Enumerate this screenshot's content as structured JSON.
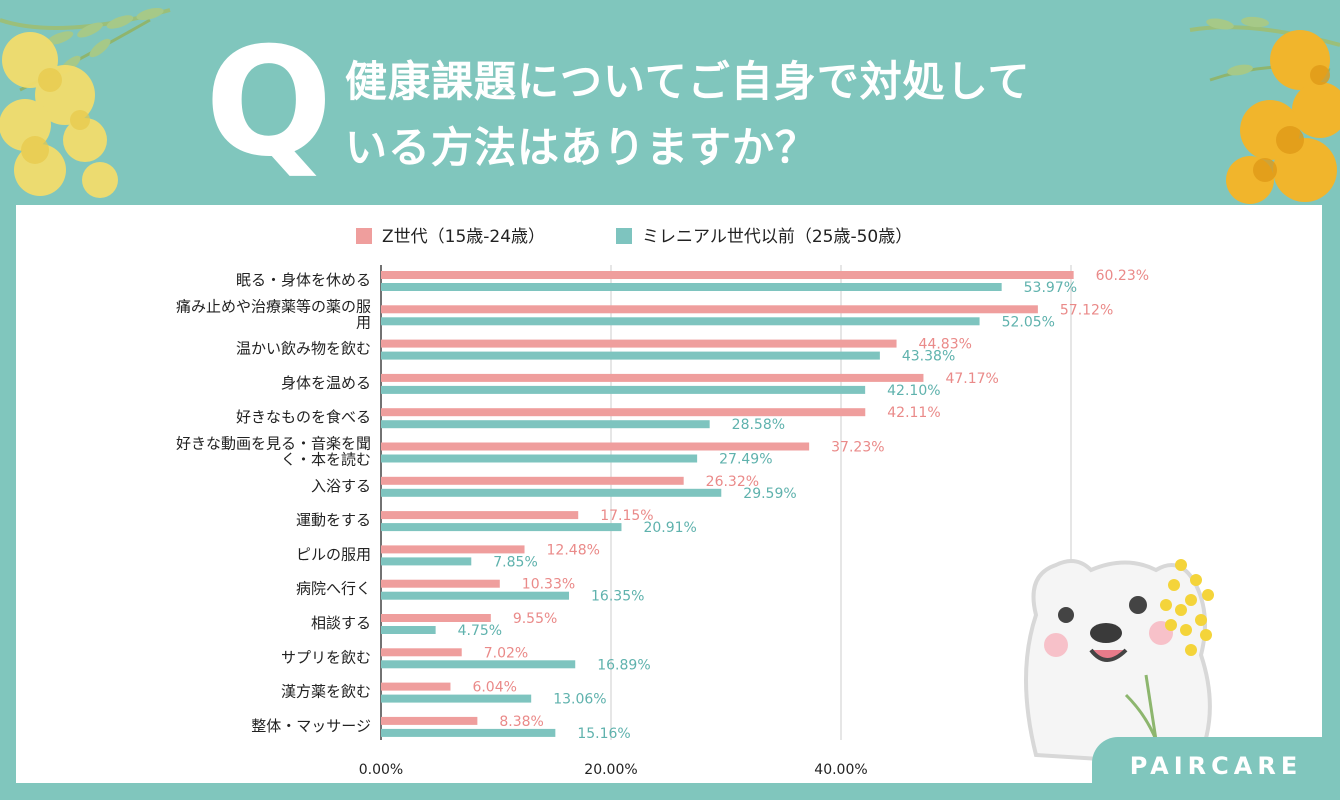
{
  "question": {
    "mark": "Q",
    "line1": "健康課題についてご自身で対処して",
    "line2": "いる方法はありますか？"
  },
  "brand": "PAIRCARE",
  "colors": {
    "frame": "#80c6bd",
    "series_z": "#ef9e9d",
    "series_m": "#7ec4bf",
    "label_z": "#ea8a89",
    "label_m": "#5fb2ad",
    "grid": "#cccccc",
    "text": "#222222"
  },
  "chart_data": {
    "type": "bar",
    "orientation": "horizontal",
    "categories": [
      "眠る・身体を休める",
      "痛み止めや治療薬等の薬の服用",
      "温かい飲み物を飲む",
      "身体を温める",
      "好きなものを食べる",
      "好きな動画を見る・音楽を聞く・本を読む",
      "入浴する",
      "運動をする",
      "ピルの服用",
      "病院へ行く",
      "相談する",
      "サプリを飲む",
      "漢方薬を飲む",
      "整体・マッサージ"
    ],
    "category_lines": [
      [
        "眠る・身体を休める"
      ],
      [
        "痛み止めや治療薬等の薬の服",
        "用"
      ],
      [
        "温かい飲み物を飲む"
      ],
      [
        "身体を温める"
      ],
      [
        "好きなものを食べる"
      ],
      [
        "好きな動画を見る・音楽を聞",
        "く・本を読む"
      ],
      [
        "入浴する"
      ],
      [
        "運動をする"
      ],
      [
        "ピルの服用"
      ],
      [
        "病院へ行く"
      ],
      [
        "相談する"
      ],
      [
        "サプリを飲む"
      ],
      [
        "漢方薬を飲む"
      ],
      [
        "整体・マッサージ"
      ]
    ],
    "series": [
      {
        "name": "Z世代（15歳-24歳）",
        "values": [
          60.23,
          57.12,
          44.83,
          47.17,
          42.11,
          37.23,
          26.32,
          17.15,
          12.48,
          10.33,
          9.55,
          7.02,
          6.04,
          8.38
        ],
        "labels": [
          "60.23%",
          "57.12%",
          "44.83%",
          "47.17%",
          "42.11%",
          "37.23%",
          "26.32%",
          "17.15%",
          "12.48%",
          "10.33%",
          "9.55%",
          "7.02%",
          "6.04%",
          "8.38%"
        ]
      },
      {
        "name": "ミレニアル世代以前（25歳-50歳）",
        "values": [
          53.97,
          52.05,
          43.38,
          42.1,
          28.58,
          27.49,
          29.59,
          20.91,
          7.85,
          16.35,
          4.75,
          16.89,
          13.06,
          15.16
        ],
        "labels": [
          "53.97%",
          "52.05%",
          "43.38%",
          "42.10%",
          "28.58%",
          "27.49%",
          "29.59%",
          "20.91%",
          "7.85%",
          "16.35%",
          "4.75%",
          "16.89%",
          "13.06%",
          "15.16%"
        ]
      }
    ],
    "xlim": [
      0,
      60
    ],
    "xticks": [
      0,
      20,
      40
    ],
    "xtick_labels": [
      "0.00%",
      "20.00%",
      "40.00%"
    ],
    "legend": "top-center",
    "grid": true
  }
}
